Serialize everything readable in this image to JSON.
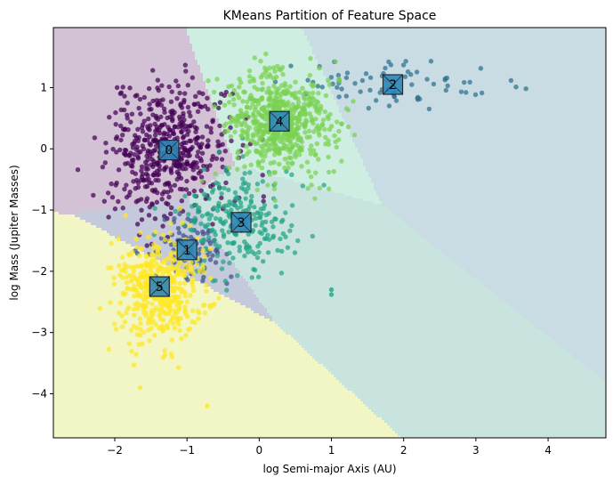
{
  "chart_data": {
    "type": "scatter",
    "title": "KMeans Partition of Feature Space",
    "xlabel": "log Semi-major Axis (AU)",
    "ylabel": "log Mass (Jupiter Masses)",
    "xlim": [
      -2.85,
      4.8
    ],
    "ylim": [
      -4.72,
      1.98
    ],
    "xticks": [
      -2,
      -1,
      0,
      1,
      2,
      3,
      4
    ],
    "yticks": [
      -4,
      -3,
      -2,
      -1,
      0,
      1
    ],
    "xtick_labels": [
      "−2",
      "−1",
      "0",
      "1",
      "2",
      "3",
      "4"
    ],
    "ytick_labels": [
      "−4",
      "−3",
      "−2",
      "−1",
      "0",
      "1"
    ],
    "grid": false,
    "legend": "none",
    "clusters": [
      {
        "label": "0",
        "center": [
          -1.25,
          -0.02
        ],
        "spread": [
          0.42,
          0.55
        ],
        "count": 520,
        "color": "#440154",
        "region_color": "#d3c1d6"
      },
      {
        "label": "1",
        "center": [
          -1.0,
          -1.65
        ],
        "spread": [
          0.3,
          0.28
        ],
        "count": 90,
        "color": "#3b528b",
        "region_color": "#c4c9dc"
      },
      {
        "label": "2",
        "center": [
          1.85,
          1.05
        ],
        "spread": [
          0.75,
          0.18
        ],
        "count": 75,
        "color": "#2c728e",
        "region_color": "#c9dce4"
      },
      {
        "label": "3",
        "center": [
          -0.25,
          -1.2
        ],
        "spread": [
          0.42,
          0.45
        ],
        "count": 240,
        "color": "#21a585",
        "region_color": "#c9e4df"
      },
      {
        "label": "4",
        "center": [
          0.28,
          0.45
        ],
        "spread": [
          0.38,
          0.4
        ],
        "count": 600,
        "color": "#7ad151",
        "region_color": "#cdeee0"
      },
      {
        "label": "5",
        "center": [
          -1.38,
          -2.25
        ],
        "spread": [
          0.3,
          0.42
        ],
        "count": 480,
        "color": "#fde725",
        "region_color": "#f2f5c4"
      }
    ],
    "outliers": [
      {
        "cluster": 3,
        "x": 1.0,
        "y": -2.3
      },
      {
        "cluster": 3,
        "x": 1.0,
        "y": -2.38
      },
      {
        "cluster": 5,
        "x": -0.72,
        "y": -4.2
      },
      {
        "cluster": 5,
        "x": -1.65,
        "y": -3.9
      }
    ]
  }
}
